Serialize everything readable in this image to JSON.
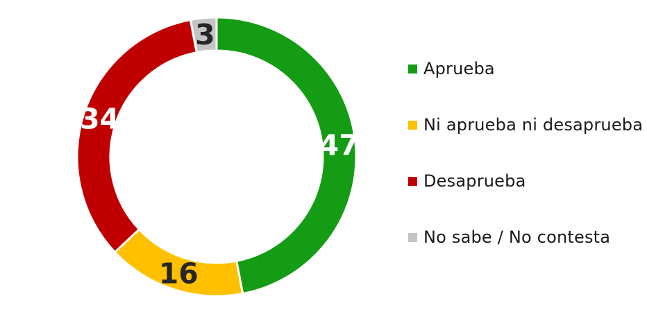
{
  "chart_data": {
    "type": "pie",
    "variant": "donut",
    "title": "",
    "total": 100,
    "start_angle_deg": 0,
    "direction": "clockwise",
    "legend_position": "right",
    "series": [
      {
        "label": "Aprueba",
        "value": 47,
        "color": "#149C14",
        "label_color": "#ffffff"
      },
      {
        "label": "Ni aprueba ni desaprueba",
        "value": 16,
        "color": "#FFC000",
        "label_color": "#262626"
      },
      {
        "label": "Desaprueba",
        "value": 34,
        "color": "#C00000",
        "label_color": "#ffffff"
      },
      {
        "label": "No sabe / No contesta",
        "value": 3,
        "color": "#C4C4C4",
        "label_color": "#262626"
      }
    ],
    "separator_color": "#ffffff"
  }
}
